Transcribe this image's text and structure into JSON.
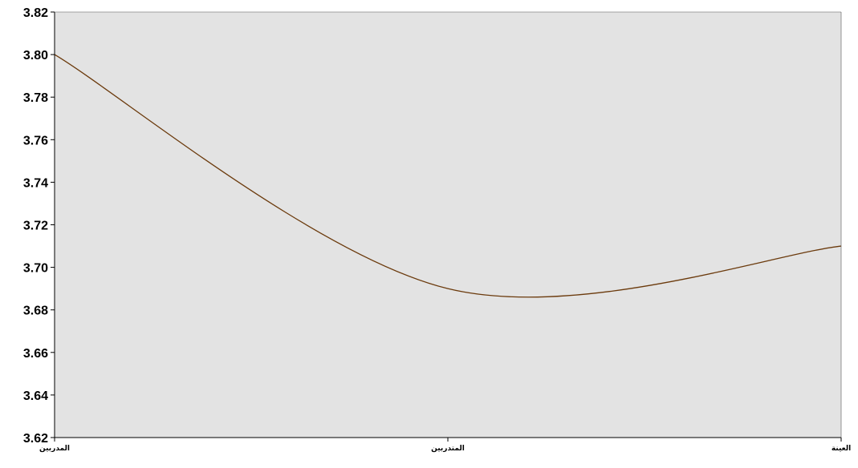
{
  "chart_data": {
    "type": "line",
    "title": "",
    "xlabel": "",
    "ylabel": "",
    "categories": [
      "المدربين",
      "المتدربين",
      "العينة"
    ],
    "series": [
      {
        "values": [
          3.8,
          3.69,
          3.71
        ]
      }
    ],
    "ylim": [
      3.62,
      3.82
    ],
    "y_ticks": [
      "3.62",
      "3.64",
      "3.66",
      "3.68",
      "3.70",
      "3.72",
      "3.74",
      "3.76",
      "3.78",
      "3.80",
      "3.82"
    ],
    "grid": false,
    "legend": "none",
    "smooth": true,
    "colors": {
      "plot_background": "#e3e3e3",
      "line": "#6b3a0c",
      "axis": "#000000"
    }
  }
}
